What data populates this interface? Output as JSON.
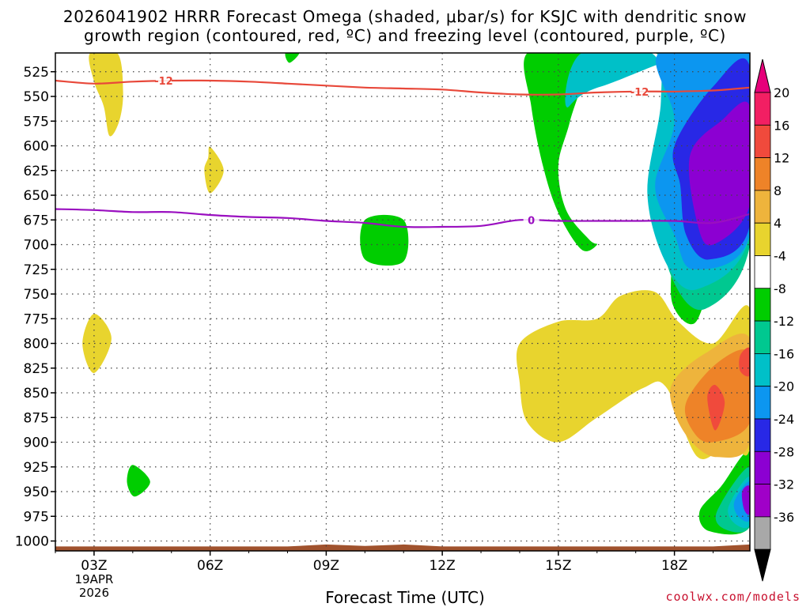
{
  "title_line1": "2026041902 HRRR Forecast Omega (shaded, μbar/s) for KSJC with dendritic snow",
  "title_line2": "growth region (contoured, red, ºC) and freezing level (contoured, purple, ºC)",
  "xlabel": "Forecast Time (UTC)",
  "credit": "coolwx.com/models",
  "chart_data": {
    "type": "heatmap",
    "x_ticks": [
      {
        "hour": 3,
        "label": "03Z"
      },
      {
        "hour": 6,
        "label": "06Z"
      },
      {
        "hour": 9,
        "label": "09Z"
      },
      {
        "hour": 12,
        "label": "12Z"
      },
      {
        "hour": 15,
        "label": "15Z"
      },
      {
        "hour": 18,
        "label": "18Z"
      }
    ],
    "date_label": [
      "19APR",
      "2026"
    ],
    "x_range_hours": [
      2.0,
      19.95
    ],
    "y_axis": "pressure (hPa), inverted",
    "y_ticks": [
      525,
      550,
      575,
      600,
      625,
      650,
      675,
      700,
      725,
      750,
      775,
      800,
      825,
      850,
      875,
      900,
      925,
      950,
      975,
      1000
    ],
    "y_range": [
      506,
      1010
    ],
    "grid": "dotted",
    "colorbar": {
      "labels": [
        "20",
        "16",
        "12",
        "8",
        "4",
        "-4",
        "-8",
        "-12",
        "-16",
        "-20",
        "-24",
        "-28",
        "-32",
        "-36"
      ],
      "colors": [
        "#f21f63",
        "#f04a3c",
        "#ee8328",
        "#eeb43c",
        "#e8d42e",
        "#ffffff",
        "#00cd00",
        "#00c890",
        "#00c0c8",
        "#0c96f0",
        "#2828e6",
        "#8c00d2",
        "#a000c8",
        "#a8a8a8"
      ],
      "extend": "both",
      "top_arrow_color": "#e6007a",
      "bottom_arrow_color": "#000000"
    },
    "contours": [
      {
        "label": "-12",
        "color": "#e8483a",
        "points": [
          [
            2.0,
            534
          ],
          [
            3.0,
            537
          ],
          [
            4.0,
            535
          ],
          [
            5.0,
            534
          ],
          [
            6.0,
            534
          ],
          [
            7.0,
            535
          ],
          [
            8.0,
            537
          ],
          [
            9.0,
            539
          ],
          [
            10.0,
            541
          ],
          [
            11.0,
            542
          ],
          [
            12.0,
            543
          ],
          [
            13.0,
            546
          ],
          [
            14.0,
            548
          ],
          [
            15.0,
            548
          ],
          [
            16.0,
            546
          ],
          [
            17.0,
            545
          ],
          [
            18.0,
            545
          ],
          [
            19.0,
            544
          ],
          [
            19.95,
            541
          ]
        ]
      },
      {
        "label": "0",
        "color": "#9a0fc0",
        "points": [
          [
            2.0,
            664
          ],
          [
            3.0,
            665
          ],
          [
            4.0,
            667
          ],
          [
            5.0,
            667
          ],
          [
            6.0,
            670
          ],
          [
            7.0,
            672
          ],
          [
            8.0,
            673
          ],
          [
            9.0,
            676
          ],
          [
            10.0,
            678
          ],
          [
            11.0,
            682
          ],
          [
            12.0,
            682
          ],
          [
            13.0,
            681
          ],
          [
            14.0,
            675
          ],
          [
            15.0,
            676
          ],
          [
            16.0,
            676
          ],
          [
            17.0,
            676
          ],
          [
            18.0,
            676
          ],
          [
            19.0,
            678
          ],
          [
            19.95,
            669
          ]
        ]
      }
    ],
    "shaded_regions": [
      {
        "value": 4,
        "color": "#e8d42e",
        "points": [
          [
            2.9,
            506
          ],
          [
            3.6,
            506
          ],
          [
            3.75,
            545
          ],
          [
            3.65,
            575
          ],
          [
            3.4,
            590
          ],
          [
            3.25,
            560
          ],
          [
            3.0,
            535
          ]
        ]
      },
      {
        "value": 4,
        "color": "#e8d42e",
        "points": [
          [
            5.85,
            625
          ],
          [
            5.95,
            612
          ],
          [
            6.0,
            601
          ],
          [
            6.35,
            625
          ],
          [
            6.0,
            648
          ]
        ]
      },
      {
        "value": 4,
        "color": "#e8d42e",
        "points": [
          [
            2.7,
            800
          ],
          [
            3.0,
            770
          ],
          [
            3.45,
            795
          ],
          [
            3.0,
            830
          ]
        ]
      },
      {
        "value": -8,
        "color": "#00cd00",
        "points": [
          [
            3.85,
            940
          ],
          [
            4.0,
            923
          ],
          [
            4.45,
            940
          ],
          [
            4.05,
            955
          ]
        ]
      },
      {
        "value": -8,
        "color": "#00cd00",
        "points": [
          [
            7.95,
            506
          ],
          [
            8.3,
            506
          ],
          [
            8.05,
            516
          ]
        ]
      },
      {
        "value": -8,
        "color": "#00cd00",
        "points": [
          [
            10.0,
            675
          ],
          [
            11.0,
            675
          ],
          [
            11.0,
            717
          ],
          [
            10.0,
            715
          ]
        ]
      },
      {
        "value": -8,
        "color": "#00cd00",
        "points": [
          [
            14.2,
            506
          ],
          [
            17.6,
            506
          ],
          [
            17.9,
            560
          ],
          [
            17.6,
            650
          ],
          [
            17.9,
            710
          ],
          [
            17.95,
            760
          ],
          [
            18.5,
            780
          ],
          [
            19.0,
            740
          ],
          [
            19.95,
            700
          ],
          [
            19.95,
            506
          ]
        ]
      },
      {
        "value": -8,
        "color": "#00cd00",
        "points": [
          [
            14.2,
            506
          ],
          [
            15.7,
            506
          ],
          [
            15.3,
            575
          ],
          [
            15.0,
            620
          ],
          [
            15.2,
            665
          ],
          [
            15.8,
            695
          ],
          [
            16.0,
            700
          ],
          [
            15.6,
            705
          ],
          [
            15.0,
            668
          ],
          [
            14.6,
            620
          ],
          [
            14.3,
            560
          ]
        ]
      },
      {
        "value": -12,
        "color": "#00c890",
        "points": [
          [
            14.95,
            506
          ],
          [
            17.5,
            506
          ],
          [
            17.75,
            560
          ],
          [
            17.5,
            650
          ],
          [
            17.95,
            735
          ],
          [
            18.8,
            765
          ],
          [
            19.95,
            700
          ],
          [
            19.95,
            506
          ]
        ]
      },
      {
        "value": -16,
        "color": "#00c0c8",
        "points": [
          [
            15.6,
            506
          ],
          [
            17.4,
            506
          ],
          [
            17.65,
            555
          ],
          [
            17.3,
            648
          ],
          [
            17.8,
            720
          ],
          [
            18.6,
            745
          ],
          [
            19.95,
            690
          ],
          [
            19.95,
            506
          ],
          [
            16.1,
            540
          ],
          [
            15.2,
            560
          ]
        ]
      },
      {
        "value": -20,
        "color": "#0c96f0",
        "points": [
          [
            17.6,
            506
          ],
          [
            19.95,
            506
          ],
          [
            19.95,
            690
          ],
          [
            18.5,
            725
          ],
          [
            18.0,
            690
          ],
          [
            17.5,
            640
          ],
          [
            18.0,
            575
          ]
        ]
      },
      {
        "value": -24,
        "color": "#2828e6",
        "points": [
          [
            18.0,
            600
          ],
          [
            19.0,
            540
          ],
          [
            19.95,
            520
          ],
          [
            19.95,
            680
          ],
          [
            18.9,
            715
          ],
          [
            18.3,
            690
          ],
          [
            18.15,
            640
          ]
        ]
      },
      {
        "value": -28,
        "color": "#8c00d2",
        "points": [
          [
            18.4,
            610
          ],
          [
            19.2,
            575
          ],
          [
            19.95,
            560
          ],
          [
            19.95,
            660
          ],
          [
            19.0,
            700
          ],
          [
            18.6,
            680
          ]
        ]
      },
      {
        "value": -8,
        "color": "#00cd00",
        "points": [
          [
            18.65,
            970
          ],
          [
            19.2,
            945
          ],
          [
            19.95,
            910
          ],
          [
            19.95,
            985
          ],
          [
            18.9,
            990
          ]
        ]
      },
      {
        "value": -12,
        "color": "#00c890",
        "points": [
          [
            19.1,
            970
          ],
          [
            19.95,
            925
          ],
          [
            19.95,
            985
          ],
          [
            19.3,
            988
          ]
        ]
      },
      {
        "value": -16,
        "color": "#00c0c8",
        "points": [
          [
            19.4,
            965
          ],
          [
            19.95,
            935
          ],
          [
            19.95,
            983
          ],
          [
            19.55,
            982
          ]
        ]
      },
      {
        "value": -20,
        "color": "#0c96f0",
        "points": [
          [
            19.55,
            960
          ],
          [
            19.95,
            940
          ],
          [
            19.95,
            978
          ],
          [
            19.65,
            975
          ]
        ]
      },
      {
        "value": -28,
        "color": "#8c00d2",
        "points": [
          [
            19.75,
            950
          ],
          [
            19.95,
            945
          ],
          [
            19.95,
            972
          ],
          [
            19.8,
            968
          ]
        ]
      },
      {
        "value": 4,
        "color": "#e8d42e",
        "points": [
          [
            14.0,
            800
          ],
          [
            15.0,
            778
          ],
          [
            16.0,
            775
          ],
          [
            16.6,
            752
          ],
          [
            17.5,
            748
          ],
          [
            18.1,
            778
          ],
          [
            19.0,
            800
          ],
          [
            19.95,
            765
          ],
          [
            19.95,
            905
          ],
          [
            19.4,
            900
          ],
          [
            18.6,
            915
          ],
          [
            17.8,
            845
          ],
          [
            17.2,
            845
          ],
          [
            16.0,
            875
          ],
          [
            15.0,
            900
          ],
          [
            14.2,
            880
          ],
          [
            14.0,
            840
          ]
        ]
      },
      {
        "value": 8,
        "color": "#eeb43c",
        "points": [
          [
            17.95,
            840
          ],
          [
            18.8,
            810
          ],
          [
            19.95,
            795
          ],
          [
            19.95,
            900
          ],
          [
            19.1,
            915
          ],
          [
            18.45,
            900
          ],
          [
            18.0,
            870
          ]
        ]
      },
      {
        "value": 12,
        "color": "#ee8328",
        "points": [
          [
            18.3,
            860
          ],
          [
            19.1,
            820
          ],
          [
            19.95,
            810
          ],
          [
            19.95,
            880
          ],
          [
            19.0,
            900
          ],
          [
            18.5,
            890
          ]
        ]
      },
      {
        "value": 16,
        "color": "#f04a3c",
        "points": [
          [
            18.85,
            855
          ],
          [
            19.05,
            842
          ],
          [
            19.3,
            860
          ],
          [
            19.05,
            888
          ]
        ]
      },
      {
        "value": 16,
        "color": "#f04a3c",
        "points": [
          [
            19.7,
            812
          ],
          [
            19.95,
            805
          ],
          [
            19.95,
            832
          ],
          [
            19.7,
            828
          ]
        ]
      }
    ],
    "terrain_color": "#a0522d"
  }
}
